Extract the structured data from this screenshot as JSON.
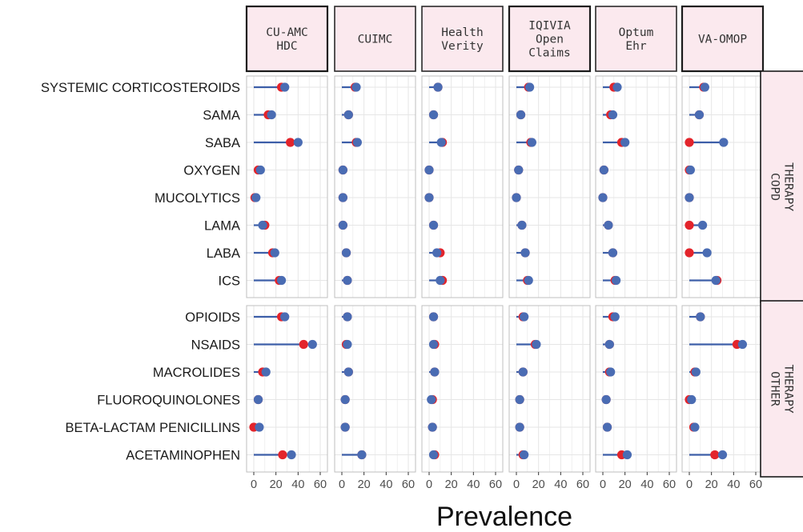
{
  "chart_data": {
    "type": "dumbbell",
    "xlabel": "Prevalence",
    "xlim": [
      0,
      60
    ],
    "x_ticks": [
      0,
      20,
      40,
      60
    ],
    "x_tick_labels": [
      "0",
      "20",
      "40",
      "60"
    ],
    "grid": true,
    "colors": {
      "point_a": "#e3242b",
      "point_b": "#4a6cb3",
      "segment": "#3c5ea8",
      "strip_bg": "#fbe9ee",
      "grid": "#e6e6e6",
      "panel_border": "#bfbfbf"
    },
    "columns": [
      {
        "id": "cuamc",
        "lines": [
          "CU-AMC",
          "HDC"
        ]
      },
      {
        "id": "cuimc",
        "lines": [
          "CUIMC"
        ]
      },
      {
        "id": "hv",
        "lines": [
          "Health",
          "Verity"
        ]
      },
      {
        "id": "iqvia",
        "lines": [
          "IQIVIA",
          "Open",
          "Claims"
        ]
      },
      {
        "id": "optum",
        "lines": [
          "Optum",
          "Ehr"
        ]
      },
      {
        "id": "va",
        "lines": [
          "VA-OMOP"
        ]
      }
    ],
    "groups": [
      {
        "lines": [
          "COPD",
          "THERAPY"
        ],
        "rows": [
          {
            "label": "SYSTEMIC CORTICOSTEROIDS",
            "values": [
              [
                25,
                28
              ],
              [
                12,
                13
              ],
              [
                8,
                8
              ],
              [
                11,
                12
              ],
              [
                10,
                13
              ],
              [
                13,
                14
              ]
            ]
          },
          {
            "label": "SAMA",
            "values": [
              [
                13,
                16
              ],
              [
                6,
                6
              ],
              [
                4,
                4
              ],
              [
                4,
                4
              ],
              [
                7,
                9
              ],
              [
                9,
                9
              ]
            ]
          },
          {
            "label": "SABA",
            "values": [
              [
                33,
                40
              ],
              [
                13,
                14
              ],
              [
                12,
                11
              ],
              [
                13,
                14
              ],
              [
                17,
                20
              ],
              [
                0,
                31
              ]
            ]
          },
          {
            "label": "OXYGEN",
            "values": [
              [
                4,
                6
              ],
              [
                1,
                1
              ],
              [
                0,
                0
              ],
              [
                2,
                2
              ],
              [
                1,
                1
              ],
              [
                0,
                1
              ]
            ]
          },
          {
            "label": "MUCOLYTICS",
            "values": [
              [
                1,
                2
              ],
              [
                1,
                1
              ],
              [
                0,
                0
              ],
              [
                0,
                0
              ],
              [
                0,
                0
              ],
              [
                0,
                0
              ]
            ]
          },
          {
            "label": "LAMA",
            "values": [
              [
                10,
                8
              ],
              [
                1,
                1
              ],
              [
                4,
                4
              ],
              [
                5,
                5
              ],
              [
                5,
                5
              ],
              [
                0,
                12
              ]
            ]
          },
          {
            "label": "LABA",
            "values": [
              [
                17,
                19
              ],
              [
                4,
                4
              ],
              [
                10,
                7
              ],
              [
                8,
                8
              ],
              [
                9,
                9
              ],
              [
                0,
                16
              ]
            ]
          },
          {
            "label": "ICS",
            "values": [
              [
                23,
                25
              ],
              [
                5,
                5
              ],
              [
                12,
                10
              ],
              [
                10,
                11
              ],
              [
                11,
                12
              ],
              [
                25,
                24
              ]
            ]
          }
        ]
      },
      {
        "lines": [
          "OTHER",
          "THERAPY"
        ],
        "rows": [
          {
            "label": "OPIOIDS",
            "values": [
              [
                25,
                28
              ],
              [
                5,
                5
              ],
              [
                4,
                4
              ],
              [
                6,
                7
              ],
              [
                9,
                11
              ],
              [
                10,
                10
              ]
            ]
          },
          {
            "label": "NSAIDS",
            "values": [
              [
                45,
                53
              ],
              [
                4,
                5
              ],
              [
                5,
                4
              ],
              [
                17,
                18
              ],
              [
                6,
                6
              ],
              [
                43,
                48
              ]
            ]
          },
          {
            "label": "MACROLIDES",
            "values": [
              [
                8,
                11
              ],
              [
                6,
                6
              ],
              [
                5,
                5
              ],
              [
                6,
                6
              ],
              [
                6,
                7
              ],
              [
                5,
                6
              ]
            ]
          },
          {
            "label": "FLUOROQUINOLONES",
            "values": [
              [
                4,
                4
              ],
              [
                3,
                3
              ],
              [
                3,
                2
              ],
              [
                3,
                3
              ],
              [
                3,
                3
              ],
              [
                0,
                2
              ]
            ]
          },
          {
            "label": "BETA-LACTAM PENICILLINS",
            "values": [
              [
                0,
                5
              ],
              [
                3,
                3
              ],
              [
                3,
                3
              ],
              [
                3,
                3
              ],
              [
                4,
                4
              ],
              [
                4,
                5
              ]
            ]
          },
          {
            "label": "ACETAMINOPHEN",
            "values": [
              [
                26,
                34
              ],
              [
                18,
                18
              ],
              [
                5,
                4
              ],
              [
                6,
                7
              ],
              [
                17,
                22
              ],
              [
                23,
                30
              ]
            ]
          }
        ]
      }
    ]
  }
}
